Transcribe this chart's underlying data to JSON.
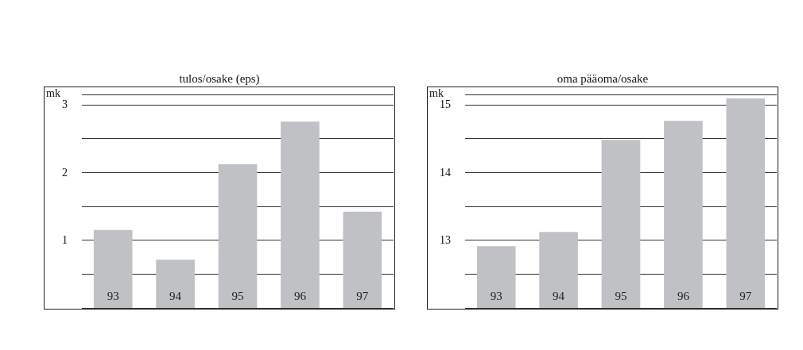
{
  "chart_data": [
    {
      "type": "bar",
      "title": "tulos/osake (eps)",
      "ylabel": "mk",
      "categories": [
        "93",
        "94",
        "95",
        "96",
        "97"
      ],
      "values": [
        1.15,
        0.71,
        2.12,
        2.75,
        1.42
      ],
      "color": "#c0c1c4",
      "ylim": [
        0,
        3.15
      ],
      "yticks": [
        {
          "value": 0,
          "label": null
        },
        {
          "value": 0.5,
          "label": null
        },
        1,
        {
          "value": 1.5,
          "label": null
        },
        2,
        {
          "value": 2.5,
          "label": null
        },
        3
      ],
      "grid": "y"
    },
    {
      "type": "bar",
      "title": "oma pääoma/osake",
      "ylabel": "mk",
      "categories": [
        "93",
        "94",
        "95",
        "96",
        "97"
      ],
      "values": [
        12.91,
        13.12,
        14.48,
        14.76,
        15.09
      ],
      "color": "#c0c1c4",
      "ylim": [
        12,
        15.15
      ],
      "yticks": [
        {
          "value": 12,
          "label": null
        },
        {
          "value": 12.5,
          "label": null
        },
        13,
        {
          "value": 13.5,
          "label": null
        },
        14,
        {
          "value": 14.5,
          "label": null
        },
        15
      ],
      "grid": "y"
    }
  ]
}
